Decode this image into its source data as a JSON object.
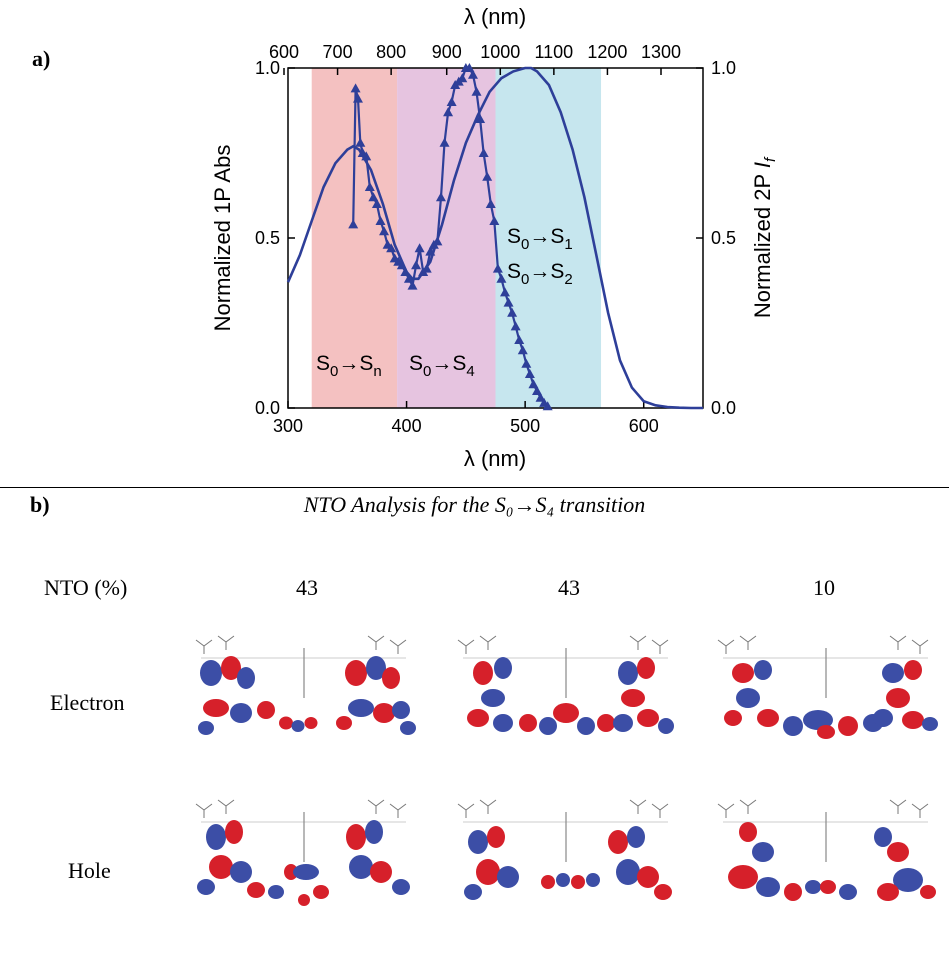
{
  "panel_a": {
    "label": "a)"
  },
  "panel_b": {
    "label": "b)",
    "title": "NTO Analysis for the S₀→S₄ transition",
    "row_header": "NTO (%)",
    "percents": [
      "43",
      "43",
      "10"
    ],
    "row_labels": [
      "Electron",
      "Hole"
    ]
  },
  "chart_data": {
    "type": "line",
    "top_axis": {
      "label": "λ (nm)",
      "ticks": [
        600,
        700,
        800,
        900,
        1000,
        1100,
        1200,
        1300
      ]
    },
    "bottom_axis": {
      "label": "λ (nm)",
      "range": [
        300,
        650
      ],
      "ticks": [
        300,
        400,
        500,
        600
      ]
    },
    "left_axis": {
      "label": "Normalized 1P Abs",
      "range": [
        0,
        1
      ],
      "ticks": [
        "0.0",
        "0.5",
        "1.0"
      ]
    },
    "right_axis": {
      "label": "Normalized 2P I_f",
      "label_plain": "Normalized 2P ",
      "label_italic": "I",
      "label_sub": "f",
      "range": [
        0,
        1
      ],
      "ticks": [
        "0.0",
        "0.5",
        "1.0"
      ]
    },
    "bands": [
      {
        "x_range": [
          320,
          392
        ],
        "color": "#f4c1c1"
      },
      {
        "x_range": [
          392,
          475
        ],
        "color": "#e6c4e0"
      },
      {
        "x_range": [
          475,
          564
        ],
        "color": "#c6e6ee"
      }
    ],
    "annotations": [
      {
        "text": "S0→Sn",
        "parts": [
          [
            "S",
            ""
          ],
          [
            "0",
            "sub"
          ],
          [
            "→S",
            ""
          ],
          [
            "n",
            "sub"
          ]
        ]
      },
      {
        "text": "S0→S4",
        "parts": [
          [
            "S",
            ""
          ],
          [
            "0",
            "sub"
          ],
          [
            "→S",
            ""
          ],
          [
            "4",
            "sub"
          ]
        ]
      },
      {
        "text": "S0→S1",
        "parts": [
          [
            "S",
            ""
          ],
          [
            "0",
            "sub"
          ],
          [
            "→S",
            ""
          ],
          [
            "1",
            "sub"
          ]
        ]
      },
      {
        "text": "S0→S2",
        "parts": [
          [
            "S",
            ""
          ],
          [
            "0",
            "sub"
          ],
          [
            "→S",
            ""
          ],
          [
            "2",
            "sub"
          ]
        ]
      }
    ],
    "series": [
      {
        "style": "solid",
        "color": "#2e3f99",
        "x": [
          300,
          310,
          320,
          330,
          340,
          350,
          355,
          360,
          370,
          380,
          390,
          400,
          405,
          410,
          420,
          430,
          440,
          450,
          460,
          470,
          480,
          490,
          500,
          505,
          510,
          520,
          530,
          540,
          550,
          560,
          570,
          580,
          590,
          600,
          610,
          620,
          630,
          640,
          650
        ],
        "y": [
          0.37,
          0.45,
          0.55,
          0.65,
          0.72,
          0.76,
          0.77,
          0.76,
          0.7,
          0.6,
          0.48,
          0.4,
          0.38,
          0.38,
          0.43,
          0.54,
          0.67,
          0.78,
          0.86,
          0.93,
          0.97,
          0.99,
          1.0,
          1.0,
          0.99,
          0.95,
          0.87,
          0.76,
          0.62,
          0.45,
          0.28,
          0.14,
          0.06,
          0.02,
          0.008,
          0.003,
          0.001,
          0.0,
          0.0
        ]
      },
      {
        "style": "triangles",
        "color": "#2e3f99",
        "x": [
          355,
          357,
          359,
          361,
          363,
          366,
          369,
          372,
          375,
          378,
          381,
          384,
          387,
          390,
          393,
          396,
          399,
          402,
          405,
          408,
          411,
          414,
          417,
          420,
          423,
          426,
          429,
          432,
          435,
          438,
          441,
          444,
          447,
          450,
          453,
          456,
          459,
          462,
          465,
          468,
          471,
          474,
          477,
          480,
          483,
          486,
          489,
          492,
          495,
          498,
          501,
          504,
          507,
          510,
          513,
          516,
          519
        ],
        "y": [
          0.54,
          0.94,
          0.91,
          0.78,
          0.75,
          0.74,
          0.65,
          0.62,
          0.6,
          0.55,
          0.52,
          0.48,
          0.47,
          0.44,
          0.43,
          0.42,
          0.4,
          0.38,
          0.36,
          0.42,
          0.47,
          0.4,
          0.41,
          0.46,
          0.48,
          0.49,
          0.62,
          0.78,
          0.87,
          0.9,
          0.95,
          0.96,
          0.97,
          1.0,
          1.0,
          0.98,
          0.93,
          0.85,
          0.75,
          0.68,
          0.6,
          0.55,
          0.41,
          0.38,
          0.34,
          0.31,
          0.28,
          0.24,
          0.2,
          0.17,
          0.13,
          0.1,
          0.07,
          0.05,
          0.03,
          0.015,
          0.005
        ]
      }
    ]
  },
  "colors": {
    "accent": "#2e3f99",
    "orbital_red": "#d6202a",
    "orbital_blue": "#3c4ea6"
  }
}
